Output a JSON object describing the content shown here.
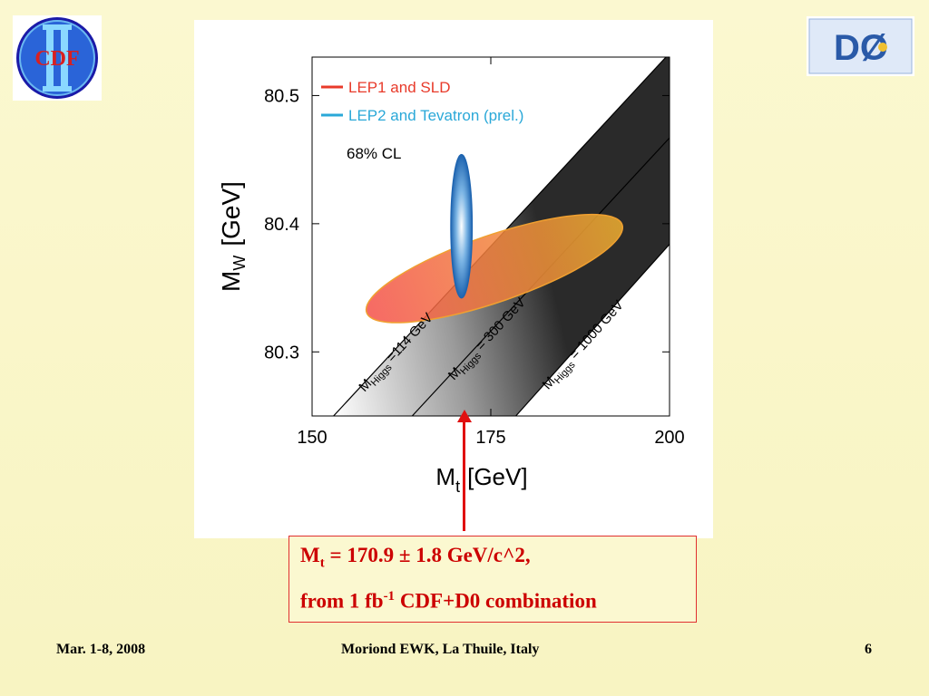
{
  "slide": {
    "footer": {
      "date": "Mar. 1-8, 2008",
      "venue": "Moriond EWK, La Thuile, Italy",
      "page_number": "6"
    },
    "logos": {
      "cdf_text": "CDF",
      "d0_text": "DØ"
    },
    "result_box": {
      "line1_symbol": "M",
      "line1_sub": "t",
      "line1_rest": " = 170.9 ± 1.8 GeV/c^2,",
      "line2_a": "from 1 fb",
      "line2_sup": "-1",
      "line2_b": " CDF+D0 combination"
    },
    "colors": {
      "accent_red": "#e01010",
      "lep1_ellipse": "#f0504a",
      "lep2_ellipse": "#3a84c8",
      "background": "#fbf8d0"
    }
  },
  "chart_data": {
    "type": "scatter",
    "xlabel_main": "M",
    "xlabel_sub": "t",
    "xlabel_unit": "[GeV]",
    "ylabel_main": "M",
    "ylabel_sub": "W",
    "ylabel_unit": "[GeV]",
    "xlim": [
      150,
      200
    ],
    "ylim": [
      80.25,
      80.53
    ],
    "x_ticks": [
      150,
      175,
      200
    ],
    "x_tick_labels": [
      "150",
      "175",
      "200"
    ],
    "y_ticks": [
      80.3,
      80.4,
      80.5
    ],
    "y_tick_labels": [
      "80.3",
      "80.4",
      "80.5"
    ],
    "legend": [
      {
        "label": "LEP1 and SLD",
        "color": "#e83a2a"
      },
      {
        "label": "LEP2 and Tevatron (prel.)",
        "color": "#2aa8d8"
      }
    ],
    "cl_label": "68% CL",
    "ellipses": [
      {
        "name": "LEP1 and SLD",
        "center": [
          175.5,
          80.365
        ],
        "half_major": 18.0,
        "half_minor": 0.026,
        "angle_deg": -19,
        "color": "#f0504a"
      },
      {
        "name": "LEP2 and Tevatron (prel.)",
        "center": [
          170.9,
          80.398
        ],
        "half_width": 1.5,
        "half_height": 0.056,
        "color": "#3a84c8"
      }
    ],
    "higgs_band": {
      "lines": [
        {
          "label_main": "M",
          "label_sub": "Higgs",
          "label_val": " =114 GeV",
          "p1": [
            153.0,
            80.25
          ],
          "p2": [
            200.0,
            80.533
          ]
        },
        {
          "label_main": "M",
          "label_sub": "Higgs",
          "label_val": " = 300 GeV",
          "p1": [
            164.0,
            80.25
          ],
          "p2": [
            200.0,
            80.467
          ]
        },
        {
          "label_main": "M",
          "label_sub": "Higgs",
          "label_val": " = 1000 GeV",
          "p1": [
            178.5,
            80.25
          ],
          "p2": [
            200.0,
            80.384
          ]
        }
      ]
    },
    "marker": {
      "x": 170.9
    }
  }
}
